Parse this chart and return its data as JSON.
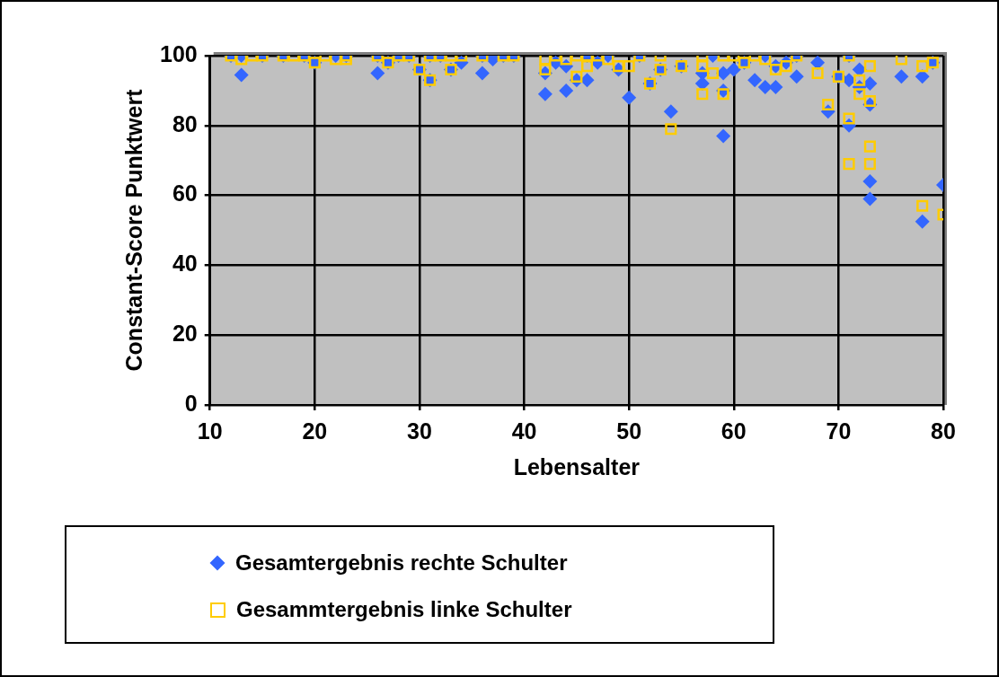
{
  "chart_data": {
    "type": "scatter",
    "xlabel": "Lebensalter",
    "ylabel": "Constant-Score Punktwert",
    "xlim": [
      10,
      80
    ],
    "xticks": [
      10,
      20,
      30,
      40,
      50,
      60,
      70,
      80
    ],
    "ylim": [
      0,
      100
    ],
    "yticks": [
      0,
      20,
      40,
      60,
      80,
      100
    ],
    "grid": true,
    "legend": "bottom",
    "series": [
      {
        "name": "Gesamtergebnis rechte Schulter",
        "color": "#3366ff",
        "marker": "diamond",
        "x": [
          12,
          13,
          13,
          15,
          17,
          19,
          20,
          22,
          23,
          26,
          26,
          27,
          28,
          29,
          30,
          31,
          31,
          32,
          33,
          34,
          36,
          36,
          37,
          38,
          39,
          42,
          42,
          43,
          44,
          44,
          45,
          46,
          46,
          47,
          48,
          49,
          50,
          51,
          52,
          53,
          54,
          55,
          57,
          57,
          58,
          59,
          59,
          59,
          60,
          61,
          62,
          63,
          63,
          64,
          64,
          65,
          66,
          66,
          68,
          69,
          70,
          71,
          71,
          71,
          72,
          72,
          73,
          73,
          73,
          73,
          76,
          78,
          78,
          79,
          80
        ],
        "values": [
          100,
          94.5,
          100,
          100,
          100,
          100,
          98,
          100,
          100,
          95,
          100,
          98,
          100,
          100,
          96,
          93,
          100,
          100,
          96,
          98,
          95,
          100,
          99,
          100,
          100,
          89,
          95,
          98,
          90,
          97,
          93,
          93,
          100,
          98,
          100,
          96,
          88,
          100,
          92,
          96,
          84,
          97,
          95,
          92,
          100,
          77,
          90,
          95,
          96,
          98,
          93,
          91,
          100,
          91,
          97,
          98,
          94,
          100,
          98,
          84,
          94,
          80,
          93,
          100,
          96,
          91,
          86,
          92,
          64,
          59,
          94,
          94,
          52.5,
          98,
          63
        ]
      },
      {
        "name": "Gesammtergebnis linke Schulter",
        "color": "#ffcc00",
        "marker": "square",
        "x": [
          12,
          13,
          14,
          15,
          17,
          18,
          19,
          20,
          21,
          22,
          23,
          23,
          26,
          27,
          28,
          29,
          30,
          31,
          31,
          32,
          33,
          33,
          34,
          36,
          38,
          39,
          42,
          42,
          43,
          44,
          45,
          45,
          46,
          46,
          47,
          48,
          49,
          50,
          51,
          52,
          53,
          53,
          54,
          55,
          57,
          57,
          57,
          58,
          59,
          59,
          60,
          61,
          62,
          63,
          64,
          65,
          66,
          68,
          69,
          70,
          71,
          71,
          71,
          72,
          72,
          73,
          73,
          73,
          73,
          76,
          78,
          78,
          79,
          80
        ],
        "values": [
          100,
          99,
          100,
          100,
          100,
          100,
          100,
          98,
          100,
          99,
          100,
          99,
          100,
          98,
          100,
          100,
          96,
          93,
          100,
          100,
          96,
          100,
          100,
          100,
          100,
          100,
          99,
          96,
          100,
          99,
          94,
          100,
          97,
          100,
          100,
          99,
          97,
          97,
          100,
          92,
          100,
          96,
          79,
          97,
          100,
          97,
          89,
          95,
          89,
          100,
          100,
          98,
          100,
          99,
          96,
          97,
          100,
          95,
          86,
          94,
          82,
          69,
          100,
          89,
          93,
          97,
          87,
          74,
          69,
          99,
          97,
          57,
          98,
          54.5
        ]
      }
    ]
  }
}
